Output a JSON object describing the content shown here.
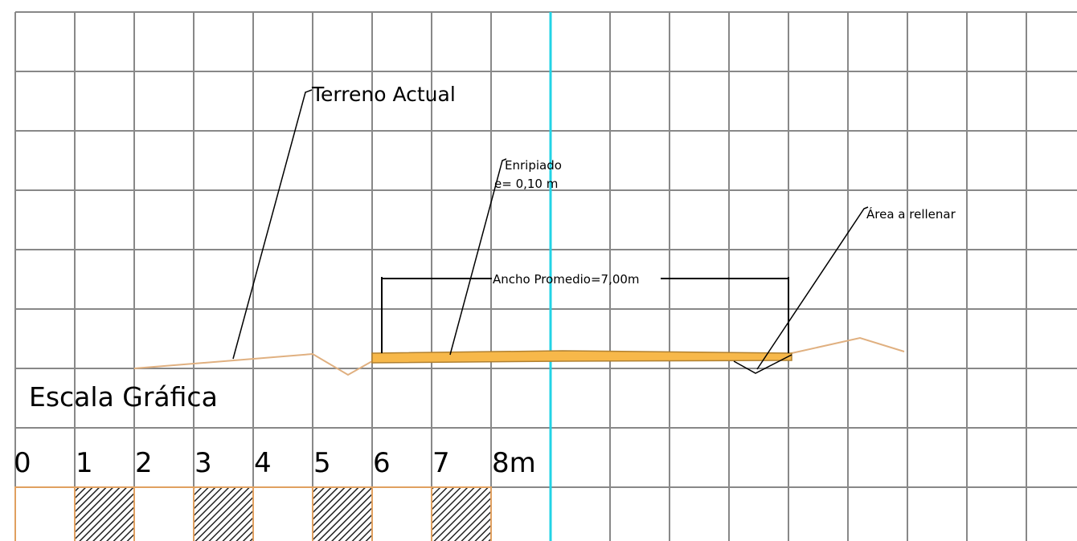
{
  "labels": {
    "terrain": "Terreno Actual",
    "gravel": "Enripiado",
    "gravel_thickness": "e= 0,10 m",
    "fill_area": "Área a rellenar",
    "width": "Ancho Promedio=7,00m"
  },
  "scale": {
    "title": "Escala Gráfica",
    "ticks": [
      "0",
      "1",
      "2",
      "3",
      "4",
      "5",
      "6",
      "7",
      "8m"
    ]
  }
}
